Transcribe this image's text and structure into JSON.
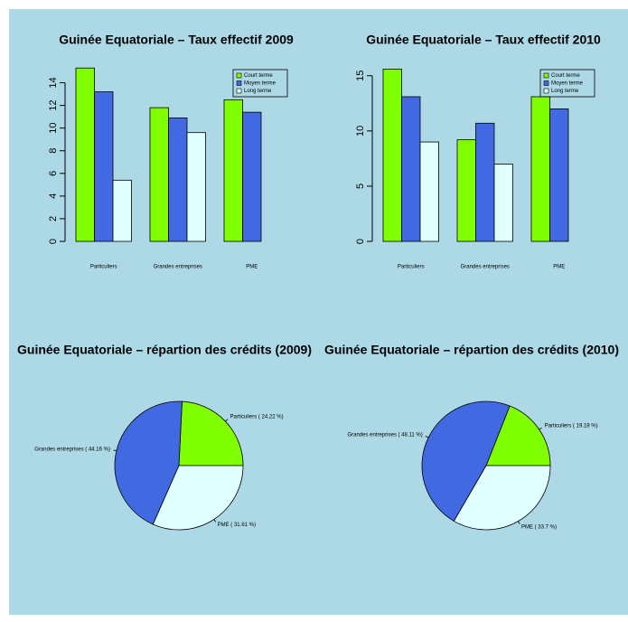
{
  "chart_data": [
    {
      "type": "bar",
      "title": "Guinée Equatoriale – Taux effectif 2009",
      "categories": [
        "Particuliers",
        "Grandes entreprises",
        "PME"
      ],
      "series": [
        {
          "name": "Court terme",
          "color": "#7fff00",
          "values": [
            15.3,
            11.8,
            12.5
          ]
        },
        {
          "name": "Moyen terme",
          "color": "#4169e1",
          "values": [
            13.2,
            10.9,
            11.4
          ]
        },
        {
          "name": "Long terme",
          "color": "#e0ffff",
          "values": [
            5.4,
            9.6,
            null
          ]
        }
      ],
      "ylim": [
        0,
        15.4
      ],
      "yticks": [
        0,
        2,
        4,
        6,
        8,
        10,
        12,
        14
      ],
      "legend": "top-right"
    },
    {
      "type": "bar",
      "title": "Guinée Equatoriale – Taux effectif 2010",
      "categories": [
        "Particuliers",
        "Grandes entreprises",
        "PME"
      ],
      "series": [
        {
          "name": "Court terme",
          "color": "#7fff00",
          "values": [
            15.6,
            9.2,
            13.1
          ]
        },
        {
          "name": "Moyen terme",
          "color": "#4169e1",
          "values": [
            13.1,
            10.7,
            12.0
          ]
        },
        {
          "name": "Long terme",
          "color": "#e0ffff",
          "values": [
            9.0,
            7.0,
            null
          ]
        }
      ],
      "ylim": [
        0,
        15.8
      ],
      "yticks": [
        0,
        5,
        10,
        15
      ],
      "legend": "top-right"
    },
    {
      "type": "pie",
      "title": "Guinée Equatoriale – répartion des crédits (2009)",
      "values": [
        24.22,
        44.16,
        31.61
      ],
      "value_labels": [
        "Particuliers ( 24.22 %)",
        "Grandes entreprises ( 44.16 %)",
        "PME ( 31.61 %)"
      ],
      "colors": [
        "#7fff00",
        "#4169e1",
        "#e0ffff"
      ]
    },
    {
      "type": "pie",
      "title": "Guinée Equatoriale – répartion des crédits (2010)",
      "values": [
        19.19,
        48.11,
        33.7
      ],
      "value_labels": [
        "Particuliers ( 19.19 %)",
        "Grandes entreprises ( 48.11 %)",
        "PME ( 33.7 %)"
      ],
      "colors": [
        "#7fff00",
        "#4169e1",
        "#e0ffff"
      ]
    }
  ]
}
